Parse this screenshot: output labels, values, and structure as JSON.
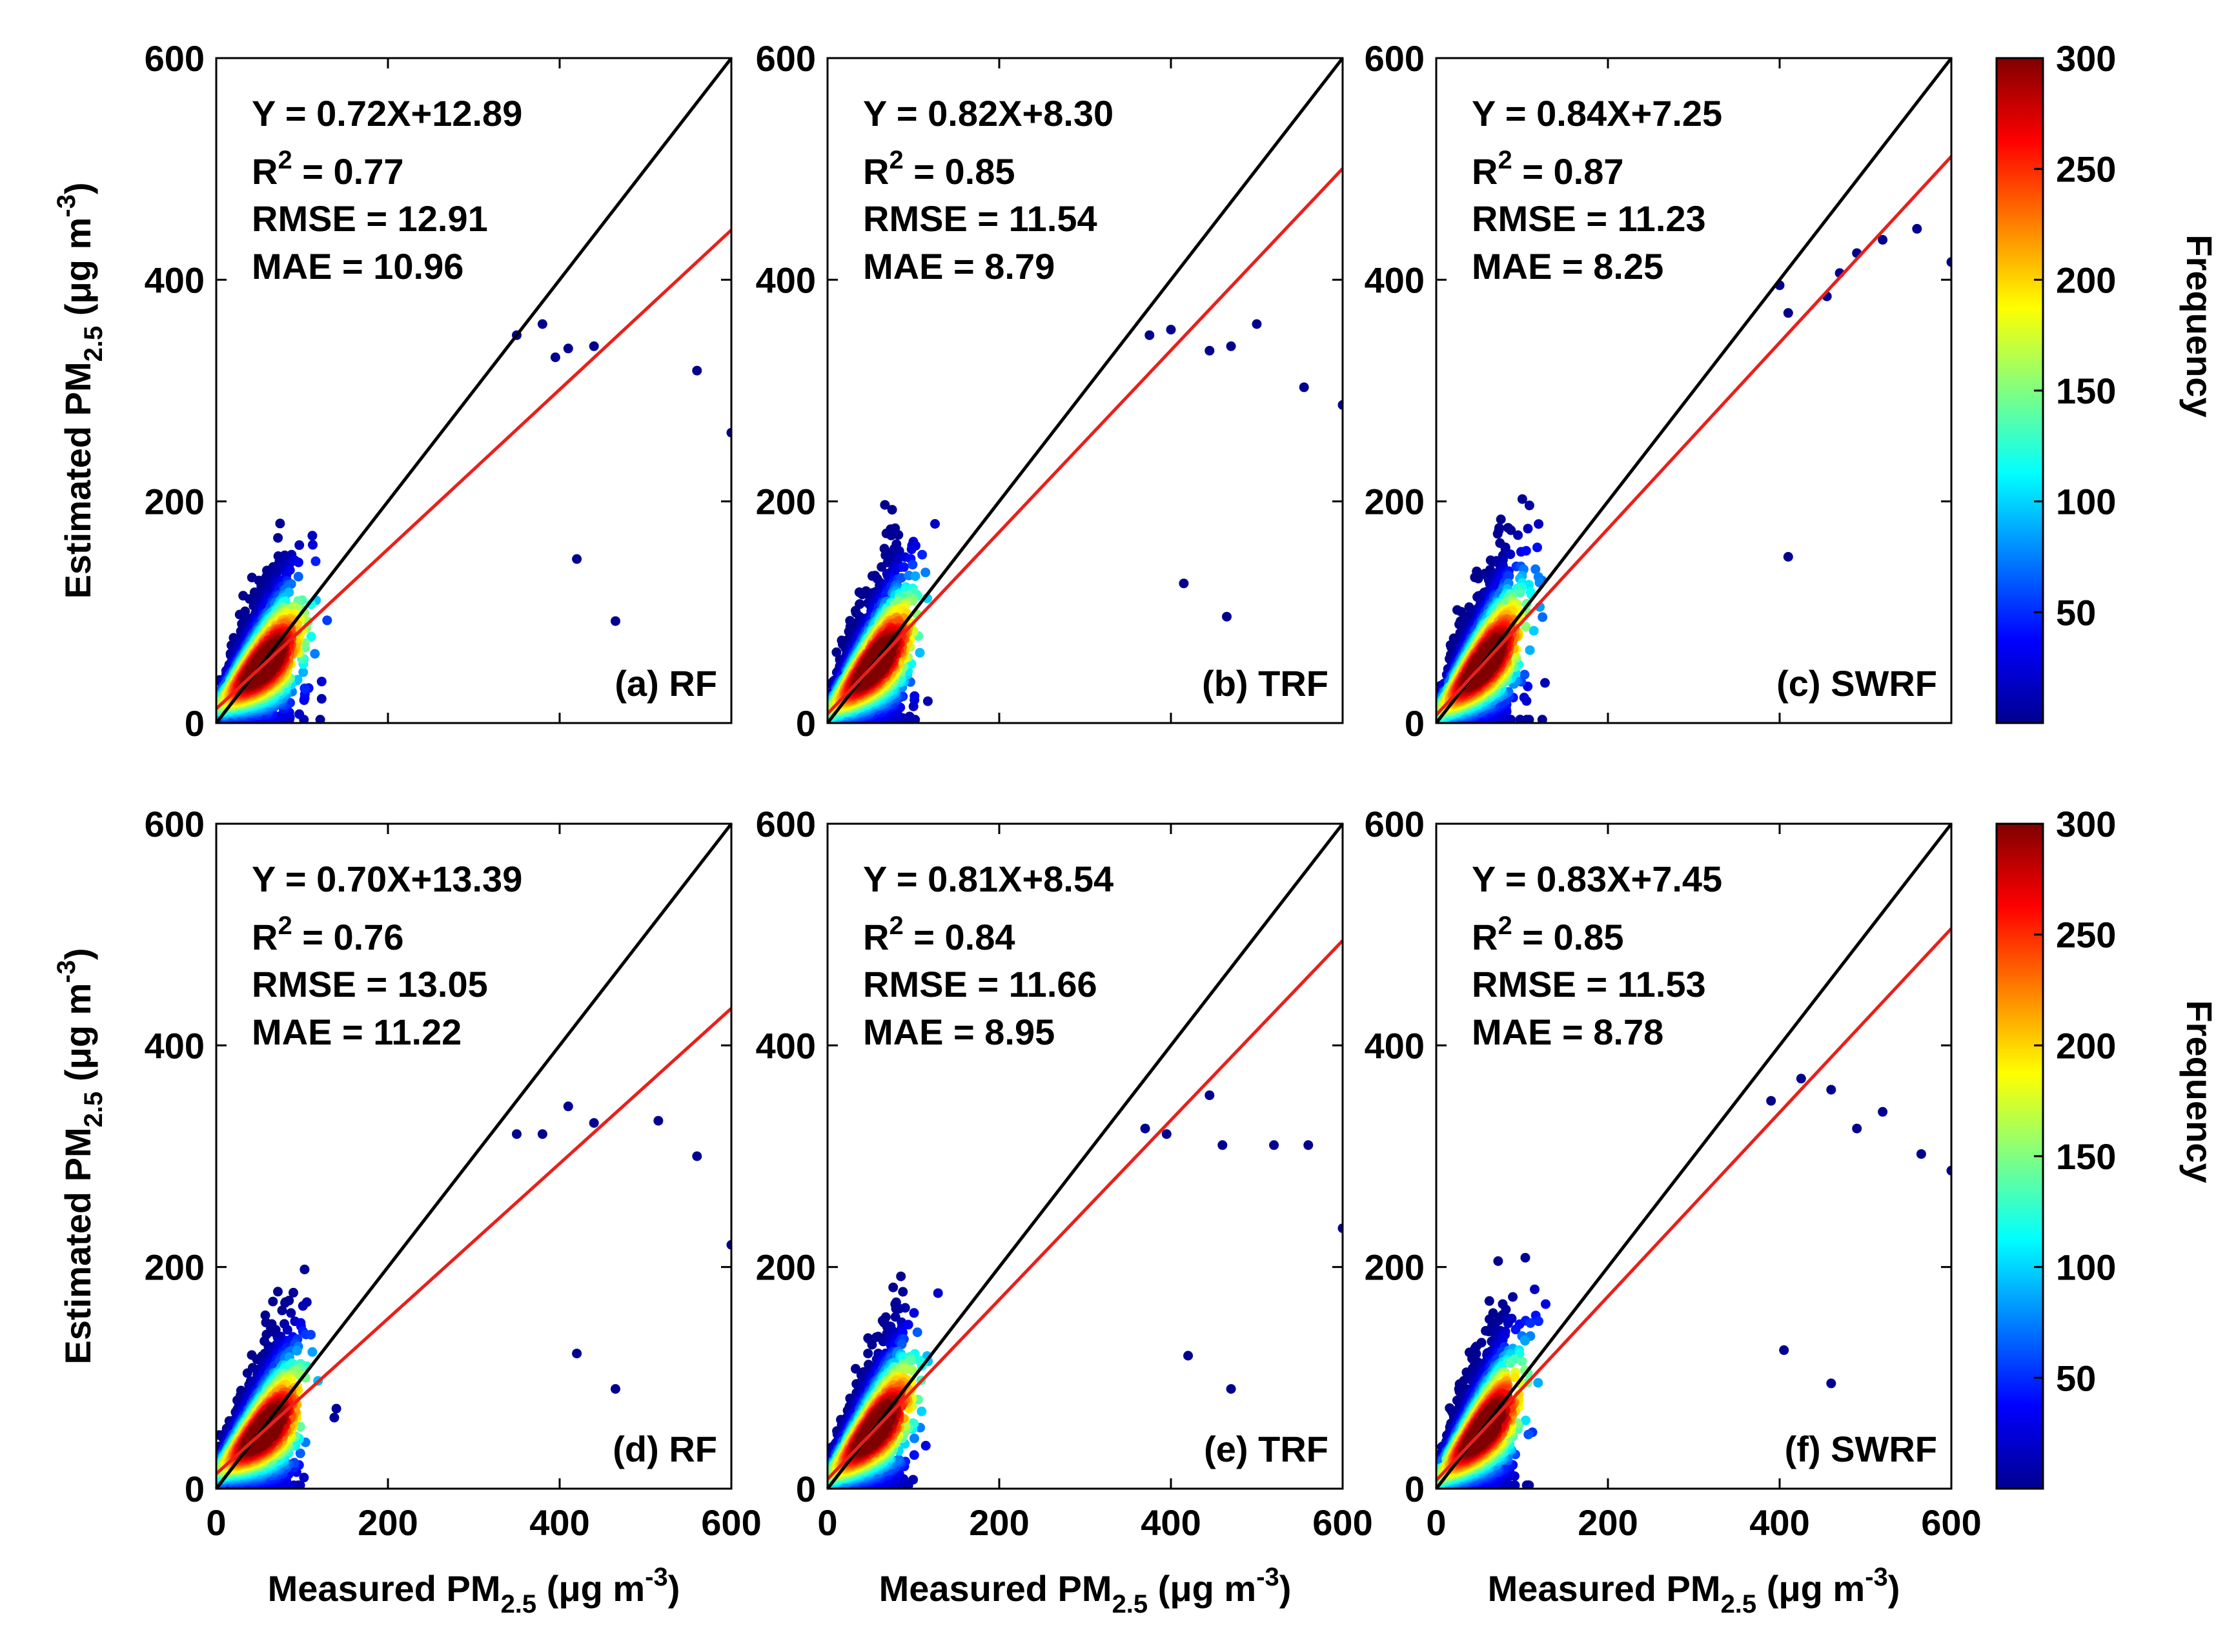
{
  "chart_data": {
    "type": "scatter",
    "layout": "2x3 grid of density scatter plots with shared colorbars",
    "x_axis": {
      "label_parts": [
        "Measured PM",
        "2.5",
        " (μg m",
        "-3",
        ")"
      ],
      "range": [
        0,
        600
      ],
      "ticks": [
        0,
        200,
        400,
        600
      ]
    },
    "y_axis": {
      "label_parts": [
        "Estimated PM",
        "2.5",
        " (μg m",
        "-3",
        ")"
      ],
      "range": [
        0,
        600
      ],
      "ticks": [
        0,
        200,
        400,
        600
      ]
    },
    "reference_line": {
      "description": "1:1 line",
      "color": "#000000"
    },
    "fit_line_color": "#e8201b",
    "point_color_low": "#00008f",
    "colorbar": {
      "label": "Frequency",
      "range": [
        0,
        300
      ],
      "ticks": [
        50,
        100,
        150,
        200,
        250,
        300
      ],
      "colormap": [
        "#00008f",
        "#0000ff",
        "#0080ff",
        "#00ffff",
        "#80ff80",
        "#ffff00",
        "#ff8000",
        "#ff0000",
        "#800000"
      ]
    },
    "panels": [
      {
        "id": "a",
        "label": "(a) RF",
        "equation": "Y = 0.72X+12.89",
        "slope": 0.72,
        "intercept": 12.89,
        "r2_prefix": "R",
        "r2_sup": "2",
        "r2_value": " = 0.77",
        "rmse": "RMSE = 12.91",
        "mae": "MAE = 10.96",
        "outliers": [
          [
            600,
            262
          ],
          [
            560,
            318
          ],
          [
            465,
            92
          ],
          [
            420,
            148
          ],
          [
            410,
            338
          ],
          [
            440,
            340
          ],
          [
            380,
            360
          ],
          [
            350,
            350
          ],
          [
            395,
            330
          ]
        ]
      },
      {
        "id": "b",
        "label": "(b) TRF",
        "equation": "Y = 0.82X+8.30",
        "slope": 0.82,
        "intercept": 8.3,
        "r2_prefix": "R",
        "r2_sup": "2",
        "r2_value": " = 0.85",
        "rmse": "RMSE = 11.54",
        "mae": "MAE = 8.79",
        "outliers": [
          [
            600,
            287
          ],
          [
            555,
            303
          ],
          [
            500,
            360
          ],
          [
            470,
            340
          ],
          [
            445,
            336
          ],
          [
            415,
            126
          ],
          [
            465,
            96
          ],
          [
            400,
            355
          ],
          [
            375,
            350
          ]
        ]
      },
      {
        "id": "c",
        "label": "(c) SWRF",
        "equation": "Y = 0.84X+7.25",
        "slope": 0.84,
        "intercept": 7.25,
        "r2_prefix": "R",
        "r2_sup": "2",
        "r2_value": " = 0.87",
        "rmse": "RMSE = 11.23",
        "mae": "MAE = 8.25",
        "outliers": [
          [
            600,
            416
          ],
          [
            560,
            446
          ],
          [
            520,
            436
          ],
          [
            490,
            424
          ],
          [
            470,
            406
          ],
          [
            400,
            395
          ],
          [
            410,
            370
          ],
          [
            410,
            150
          ],
          [
            455,
            385
          ]
        ]
      },
      {
        "id": "d",
        "label": "(d) RF",
        "equation": "Y = 0.70X+13.39",
        "slope": 0.7,
        "intercept": 13.39,
        "r2_prefix": "R",
        "r2_sup": "2",
        "r2_value": " = 0.76",
        "rmse": "RMSE = 13.05",
        "mae": "MAE = 11.22",
        "outliers": [
          [
            600,
            220
          ],
          [
            560,
            300
          ],
          [
            515,
            332
          ],
          [
            465,
            90
          ],
          [
            420,
            122
          ],
          [
            410,
            345
          ],
          [
            440,
            330
          ],
          [
            380,
            320
          ],
          [
            350,
            320
          ]
        ]
      },
      {
        "id": "e",
        "label": "(e) TRF",
        "equation": "Y = 0.81X+8.54",
        "slope": 0.81,
        "intercept": 8.54,
        "r2_prefix": "R",
        "r2_sup": "2",
        "r2_value": " = 0.84",
        "rmse": "RMSE = 11.66",
        "mae": "MAE = 8.95",
        "outliers": [
          [
            600,
            235
          ],
          [
            560,
            310
          ],
          [
            520,
            310
          ],
          [
            470,
            90
          ],
          [
            460,
            310
          ],
          [
            445,
            355
          ],
          [
            420,
            120
          ],
          [
            395,
            320
          ],
          [
            370,
            325
          ]
        ]
      },
      {
        "id": "f",
        "label": "(f) SWRF",
        "equation": "Y = 0.83X+7.45",
        "slope": 0.83,
        "intercept": 7.45,
        "r2_prefix": "R",
        "r2_sup": "2",
        "r2_value": " = 0.85",
        "rmse": "RMSE = 11.53",
        "mae": "MAE = 8.78",
        "outliers": [
          [
            600,
            287
          ],
          [
            565,
            302
          ],
          [
            520,
            340
          ],
          [
            490,
            325
          ],
          [
            460,
            360
          ],
          [
            425,
            370
          ],
          [
            460,
            95
          ],
          [
            405,
            125
          ],
          [
            390,
            350
          ]
        ]
      }
    ]
  }
}
